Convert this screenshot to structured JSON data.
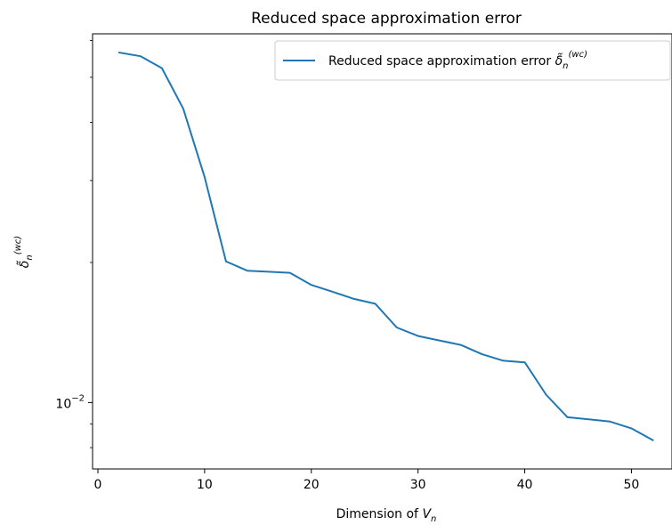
{
  "chart_data": {
    "type": "line",
    "title": "Reduced space approximation error",
    "xlabel": "Dimension of V_n",
    "xlabel_main": "Dimension of ",
    "xlabel_var": "V",
    "xlabel_sub": "n",
    "ylabel": "δ̃_n^(wc)",
    "ylabel_main": "δ̃",
    "ylabel_sub": "n",
    "ylabel_sup": "(wc)",
    "yscale": "log",
    "xlim": [
      -0.5,
      53.8
    ],
    "ylim": [
      0.0072,
      0.062
    ],
    "x_ticks": [
      0,
      10,
      20,
      30,
      40,
      50
    ],
    "x_tick_labels": [
      "0",
      "10",
      "20",
      "30",
      "40",
      "50"
    ],
    "y_ticks": [
      0.01
    ],
    "y_tick_base": "10",
    "y_tick_exponent": "−2",
    "legend_position": "top-right",
    "grid": false,
    "series": [
      {
        "name": "Reduced space approximation error δ̃_n^(wc)",
        "legend_main": "Reduced space approximation error ",
        "legend_symbol": "δ̃",
        "legend_sub": "n",
        "legend_sup": "(wc)",
        "color": "#1f77b4",
        "x": [
          2,
          4,
          6,
          8,
          10,
          12,
          14,
          16,
          18,
          20,
          22,
          24,
          26,
          28,
          30,
          32,
          34,
          36,
          38,
          40,
          42,
          44,
          46,
          48,
          50,
          52
        ],
        "y": [
          0.0565,
          0.0555,
          0.0523,
          0.0428,
          0.0305,
          0.0201,
          0.0192,
          0.0191,
          0.019,
          0.0179,
          0.0173,
          0.0167,
          0.0163,
          0.0145,
          0.0139,
          0.0136,
          0.0133,
          0.0127,
          0.0123,
          0.0122,
          0.0104,
          0.0093,
          0.0092,
          0.0091,
          0.0088,
          0.0083
        ]
      }
    ]
  }
}
